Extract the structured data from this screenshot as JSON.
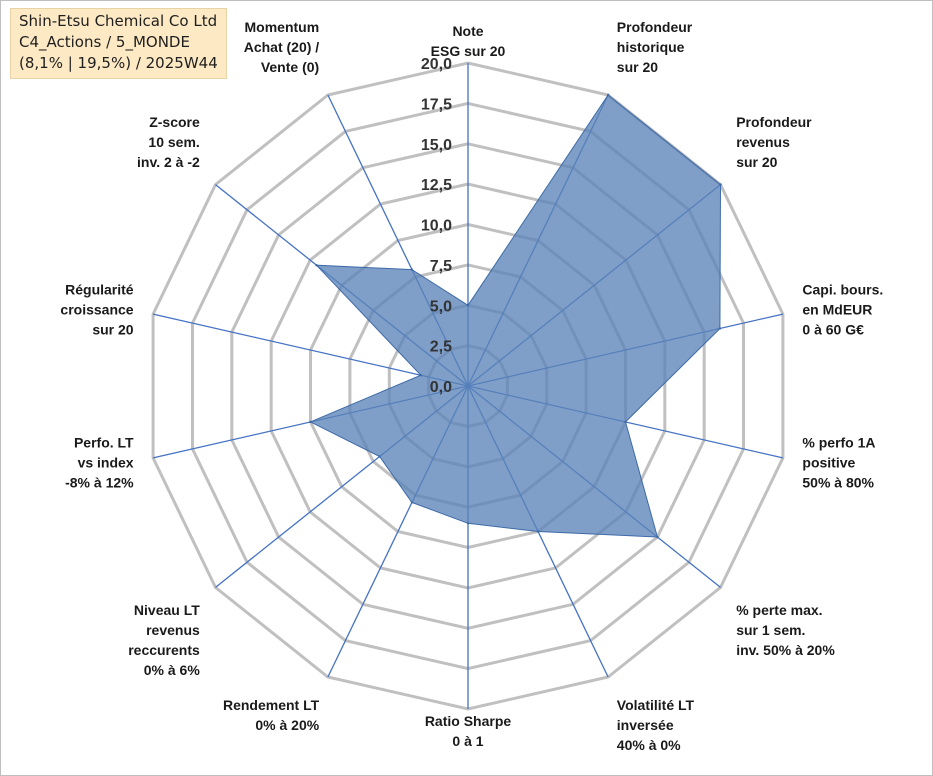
{
  "info": {
    "company": "Shin-Etsu Chemical Co Ltd",
    "category": "C4_Actions / 5_MONDE",
    "params": "(8,1% | 19,5%) / 2025W44"
  },
  "colors": {
    "fill": "#5b84b8",
    "fill_opacity": 0.78,
    "spoke": "#4472c4",
    "grid": "#c0c0c0",
    "outline": "#3d6aa8"
  },
  "chart_data": {
    "type": "radar",
    "rmax": 20,
    "ticks": [
      "0,0",
      "2,5",
      "5,0",
      "7,5",
      "10,0",
      "12,5",
      "15,0",
      "17,5",
      "20,0"
    ],
    "tick_values": [
      0,
      2.5,
      5,
      7.5,
      10,
      12.5,
      15,
      17.5,
      20
    ],
    "axes": [
      {
        "lines": [
          "Note",
          "ESG sur 20"
        ],
        "value": 5.0
      },
      {
        "lines": [
          "Profondeur",
          "historique",
          "sur 20"
        ],
        "value": 20.0
      },
      {
        "lines": [
          "Profondeur",
          "revenus",
          "sur 20"
        ],
        "value": 20.0
      },
      {
        "lines": [
          "Capi. bours.",
          "en MdEUR",
          "0 à 60 G€"
        ],
        "value": 16.0
      },
      {
        "lines": [
          "% perfo 1A",
          "positive",
          "50% à 80%"
        ],
        "value": 10.0
      },
      {
        "lines": [
          "% perte max.",
          "sur 1 sem.",
          "inv. 50% à 20%"
        ],
        "value": 15.0
      },
      {
        "lines": [
          "Volatilité LT",
          "inversée",
          "40% à 0%"
        ],
        "value": 10.0
      },
      {
        "lines": [
          "Ratio Sharpe",
          "0 à 1"
        ],
        "value": 8.5
      },
      {
        "lines": [
          "Rendement LT",
          "0% à 20%"
        ],
        "value": 8.0
      },
      {
        "lines": [
          "Niveau LT",
          "revenus",
          "reccurents",
          "0% à 6%"
        ],
        "value": 7.0
      },
      {
        "lines": [
          "Perfo. LT",
          "vs index",
          "-8% à 12%"
        ],
        "value": 10.0
      },
      {
        "lines": [
          "Régularité",
          "croissance",
          "sur 20"
        ],
        "value": 3.0
      },
      {
        "lines": [
          "Z-score",
          "10 sem.",
          "inv. 2 à -2"
        ],
        "value": 12.0
      },
      {
        "lines": [
          "Momentum",
          "Achat (20) /",
          "Vente (0)"
        ],
        "value": 8.0
      }
    ]
  }
}
